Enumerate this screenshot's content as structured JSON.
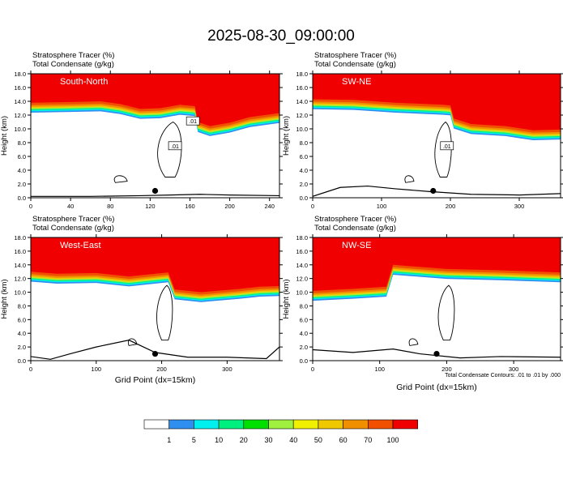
{
  "title": "2025-08-30_09:00:00",
  "colors": {
    "scale": [
      "#ffffff",
      "#2f8ff0",
      "#00f0f0",
      "#00f080",
      "#00e000",
      "#a0f040",
      "#f0f000",
      "#f0c800",
      "#f09000",
      "#f05000",
      "#f00000"
    ]
  },
  "chart_data": [
    {
      "type": "heatmap",
      "label": "South-North",
      "subtitle1": "Stratosphere Tracer   (%)",
      "subtitle2": "Total Condensate   (g/kg)",
      "ylabel": "Height (km)",
      "ylim": [
        0,
        18
      ],
      "yticks": [
        "0.0",
        "2.0",
        "4.0",
        "6.0",
        "8.0",
        "10.0",
        "12.0",
        "14.0",
        "16.0",
        "18.0"
      ],
      "xlim": [
        0,
        250
      ],
      "xticks": [
        "0",
        "40",
        "80",
        "120",
        "160",
        "200",
        "240"
      ],
      "xtick_values": [
        0,
        40,
        80,
        120,
        160,
        200,
        240
      ],
      "tropopause": [
        [
          0,
          13.8
        ],
        [
          40,
          13.9
        ],
        [
          70,
          14.0
        ],
        [
          90,
          13.6
        ],
        [
          110,
          12.9
        ],
        [
          130,
          13.0
        ],
        [
          150,
          13.5
        ],
        [
          165,
          13.3
        ],
        [
          168,
          11.0
        ],
        [
          180,
          10.4
        ],
        [
          200,
          10.9
        ],
        [
          220,
          11.7
        ],
        [
          250,
          12.3
        ]
      ],
      "terrain": [
        [
          0,
          0.2
        ],
        [
          60,
          0.2
        ],
        [
          110,
          0.3
        ],
        [
          140,
          0.4
        ],
        [
          170,
          0.5
        ],
        [
          200,
          0.4
        ],
        [
          250,
          0.3
        ]
      ],
      "marker_x": 125,
      "contour_labels": [
        ".01",
        ".01"
      ]
    },
    {
      "type": "heatmap",
      "label": "SW-NE",
      "subtitle1": "Stratosphere Tracer   (%)",
      "subtitle2": "Total Condensate   (g/kg)",
      "ylabel": "Height (km)",
      "ylim": [
        0,
        18
      ],
      "yticks": [
        "0.0",
        "2.0",
        "4.0",
        "6.0",
        "8.0",
        "10.0",
        "12.0",
        "14.0",
        "16.0",
        "18.0"
      ],
      "xlim": [
        0,
        360
      ],
      "xticks": [
        "0",
        "100",
        "200",
        "300"
      ],
      "xtick_values": [
        0,
        100,
        200,
        300
      ],
      "tropopause": [
        [
          0,
          14.3
        ],
        [
          60,
          14.2
        ],
        [
          120,
          13.8
        ],
        [
          190,
          13.5
        ],
        [
          200,
          13.4
        ],
        [
          205,
          11.5
        ],
        [
          230,
          10.7
        ],
        [
          280,
          10.4
        ],
        [
          320,
          9.8
        ],
        [
          360,
          9.9
        ]
      ],
      "terrain": [
        [
          0,
          0.2
        ],
        [
          40,
          1.5
        ],
        [
          80,
          1.7
        ],
        [
          120,
          1.3
        ],
        [
          170,
          0.9
        ],
        [
          230,
          0.5
        ],
        [
          300,
          0.4
        ],
        [
          360,
          0.6
        ]
      ],
      "marker_x": 175,
      "contour_labels": [
        ".01"
      ]
    },
    {
      "type": "heatmap",
      "label": "West-East",
      "subtitle1": "Stratosphere Tracer   (%)",
      "subtitle2": "Total Condensate   (g/kg)",
      "ylabel": "Height (km)",
      "ylim": [
        0,
        18
      ],
      "yticks": [
        "0.0",
        "2.0",
        "4.0",
        "6.0",
        "8.0",
        "10.0",
        "12.0",
        "14.0",
        "16.0",
        "18.0"
      ],
      "xlim": [
        0,
        380
      ],
      "xticks": [
        "0",
        "100",
        "200",
        "300"
      ],
      "xtick_values": [
        0,
        100,
        200,
        300
      ],
      "xlabel": "Grid Point (dx=15km)",
      "tropopause": [
        [
          0,
          13.0
        ],
        [
          40,
          12.7
        ],
        [
          100,
          12.8
        ],
        [
          150,
          12.3
        ],
        [
          210,
          12.9
        ],
        [
          220,
          10.4
        ],
        [
          260,
          10.0
        ],
        [
          320,
          10.5
        ],
        [
          350,
          10.8
        ],
        [
          380,
          10.9
        ]
      ],
      "terrain": [
        [
          0,
          0.6
        ],
        [
          30,
          0.2
        ],
        [
          60,
          1.0
        ],
        [
          100,
          2.0
        ],
        [
          150,
          3.0
        ],
        [
          190,
          1.2
        ],
        [
          240,
          0.5
        ],
        [
          300,
          0.5
        ],
        [
          360,
          0.3
        ],
        [
          380,
          2.0
        ]
      ],
      "marker_x": 190,
      "contour_labels": []
    },
    {
      "type": "heatmap",
      "label": "NW-SE",
      "subtitle1": "Stratosphere Tracer   (%)",
      "subtitle2": "Total Condensate   (g/kg)",
      "ylabel": "Height (km)",
      "ylim": [
        0,
        18
      ],
      "yticks": [
        "0.0",
        "2.0",
        "4.0",
        "6.0",
        "8.0",
        "10.0",
        "12.0",
        "14.0",
        "16.0",
        "18.0"
      ],
      "xlim": [
        0,
        370
      ],
      "xticks": [
        "0",
        "100",
        "200",
        "300"
      ],
      "xtick_values": [
        0,
        100,
        200,
        300
      ],
      "xlabel": "Grid Point (dx=15km)",
      "footnote": "Total Condensate Contours: .01 to .01 by .000",
      "tropopause": [
        [
          0,
          10.2
        ],
        [
          60,
          10.5
        ],
        [
          110,
          10.8
        ],
        [
          120,
          14.0
        ],
        [
          200,
          13.4
        ],
        [
          280,
          13.2
        ],
        [
          370,
          12.9
        ]
      ],
      "terrain": [
        [
          0,
          1.6
        ],
        [
          60,
          1.2
        ],
        [
          120,
          1.7
        ],
        [
          160,
          1.0
        ],
        [
          220,
          0.4
        ],
        [
          280,
          0.6
        ],
        [
          370,
          0.5
        ]
      ],
      "marker_x": 185,
      "contour_labels": []
    }
  ],
  "colorbar": {
    "colors": [
      "#ffffff",
      "#2f8ff0",
      "#00f0f0",
      "#00f080",
      "#00e000",
      "#a0f040",
      "#f0f000",
      "#f0c800",
      "#f09000",
      "#f05000",
      "#f00000"
    ],
    "labels": [
      "1",
      "5",
      "10",
      "20",
      "30",
      "40",
      "50",
      "60",
      "70",
      "100"
    ]
  }
}
